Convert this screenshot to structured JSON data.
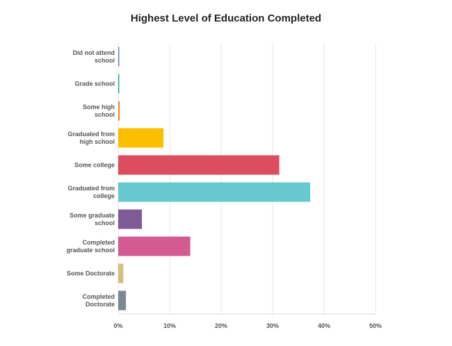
{
  "chart_data": {
    "type": "bar",
    "orientation": "horizontal",
    "title": "Highest Level of Education Completed",
    "categories": [
      [
        "Did not attend",
        "school"
      ],
      [
        "Grade school"
      ],
      [
        "Some high",
        "school"
      ],
      [
        "Graduated from",
        "high school"
      ],
      [
        "Some college"
      ],
      [
        "Graduated from",
        "college"
      ],
      [
        "Some graduate",
        "school"
      ],
      [
        "Completed",
        "graduate school"
      ],
      [
        "Some Doctorate"
      ],
      [
        "Completed",
        "Doctorate"
      ]
    ],
    "values": [
      0.2,
      0.2,
      0.3,
      8.8,
      31.3,
      37.3,
      4.6,
      14.0,
      1.0,
      1.5
    ],
    "colors": [
      "#4e8fd0",
      "#1fb48a",
      "#f08a35",
      "#fbbf00",
      "#dc4d5f",
      "#67c8cd",
      "#7e5b97",
      "#d35b92",
      "#d4bf7c",
      "#7b8890"
    ],
    "xlim": [
      0,
      50
    ],
    "xticks": [
      0,
      10,
      20,
      30,
      40,
      50
    ],
    "xtick_labels": [
      "0%",
      "10%",
      "20%",
      "30%",
      "40%",
      "50%"
    ],
    "grid": true
  }
}
